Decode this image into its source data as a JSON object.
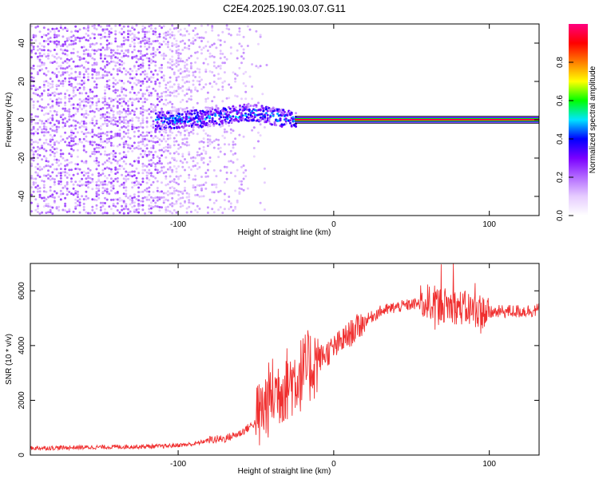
{
  "title": "C2E4.2025.190.03.07.G11",
  "colors": {
    "snr_line": "#f03030",
    "axis": "#000000",
    "colormap": [
      "#ffffff",
      "#e6ccff",
      "#b36bff",
      "#7a00ff",
      "#0000ff",
      "#00e5ff",
      "#00ff00",
      "#ffff00",
      "#ff7f00",
      "#ff0000",
      "#ff0080"
    ]
  },
  "chart_data": [
    {
      "type": "heatmap",
      "title": "C2E4.2025.190.03.07.G11",
      "xlabel": "Height of straight line (km)",
      "ylabel": "Frequency (Hz)",
      "xlim": [
        -195,
        132
      ],
      "ylim": [
        -50,
        50
      ],
      "x_ticks": [
        -100,
        0,
        100
      ],
      "x_tick_labels": [
        "-100",
        "0",
        "100"
      ],
      "y_ticks": [
        -40,
        -20,
        0,
        20,
        40
      ],
      "y_tick_labels": [
        "-40",
        "-20",
        "0",
        "20",
        "40"
      ],
      "colorbar": {
        "label": "Normalized spectral amplitude",
        "range": [
          0,
          1
        ],
        "ticks": [
          0.0,
          0.2,
          0.4,
          0.6,
          0.8
        ],
        "tick_labels": [
          "0.0",
          "0.2",
          "0.4",
          "0.6",
          "0.8"
        ]
      },
      "features": {
        "noise_region_x": [
          -195,
          -55
        ],
        "signal_onset_x": -25,
        "carrier_freq_hz": 0,
        "carrier_x": [
          -25,
          132
        ],
        "carrier_amplitude": 0.95,
        "transition_track": [
          {
            "x": -115,
            "y": 0.0
          },
          {
            "x": -100,
            "y": 0.8
          },
          {
            "x": -85,
            "y": 1.2
          },
          {
            "x": -70,
            "y": 2.5
          },
          {
            "x": -55,
            "y": 4.5
          },
          {
            "x": -45,
            "y": 3.5
          },
          {
            "x": -35,
            "y": 1.5
          },
          {
            "x": -25,
            "y": 0.5
          }
        ]
      }
    },
    {
      "type": "line",
      "xlabel": "Height of straight line (km)",
      "ylabel": "SNR (10 * v/v)",
      "xlim": [
        -195,
        132
      ],
      "ylim": [
        0,
        7000
      ],
      "x_ticks": [
        -100,
        0,
        100
      ],
      "x_tick_labels": [
        "-100",
        "0",
        "100"
      ],
      "y_ticks": [
        0,
        2000,
        4000,
        6000
      ],
      "y_tick_labels": [
        "0",
        "2000",
        "4000",
        "6000"
      ],
      "series": [
        {
          "x": [
            -195,
            -150,
            -110,
            -90,
            -80,
            -70,
            -60,
            -50,
            -40,
            -30,
            -20,
            -10,
            0,
            10,
            20,
            30,
            40,
            50,
            60,
            70,
            80,
            90,
            100,
            110,
            120,
            132
          ],
          "y": [
            250,
            290,
            320,
            400,
            550,
            600,
            800,
            1200,
            2200,
            2600,
            3000,
            3500,
            3900,
            4400,
            4900,
            5250,
            5400,
            5500,
            5600,
            5500,
            5400,
            5300,
            5200,
            5250,
            5250,
            5300
          ]
        }
      ]
    }
  ]
}
